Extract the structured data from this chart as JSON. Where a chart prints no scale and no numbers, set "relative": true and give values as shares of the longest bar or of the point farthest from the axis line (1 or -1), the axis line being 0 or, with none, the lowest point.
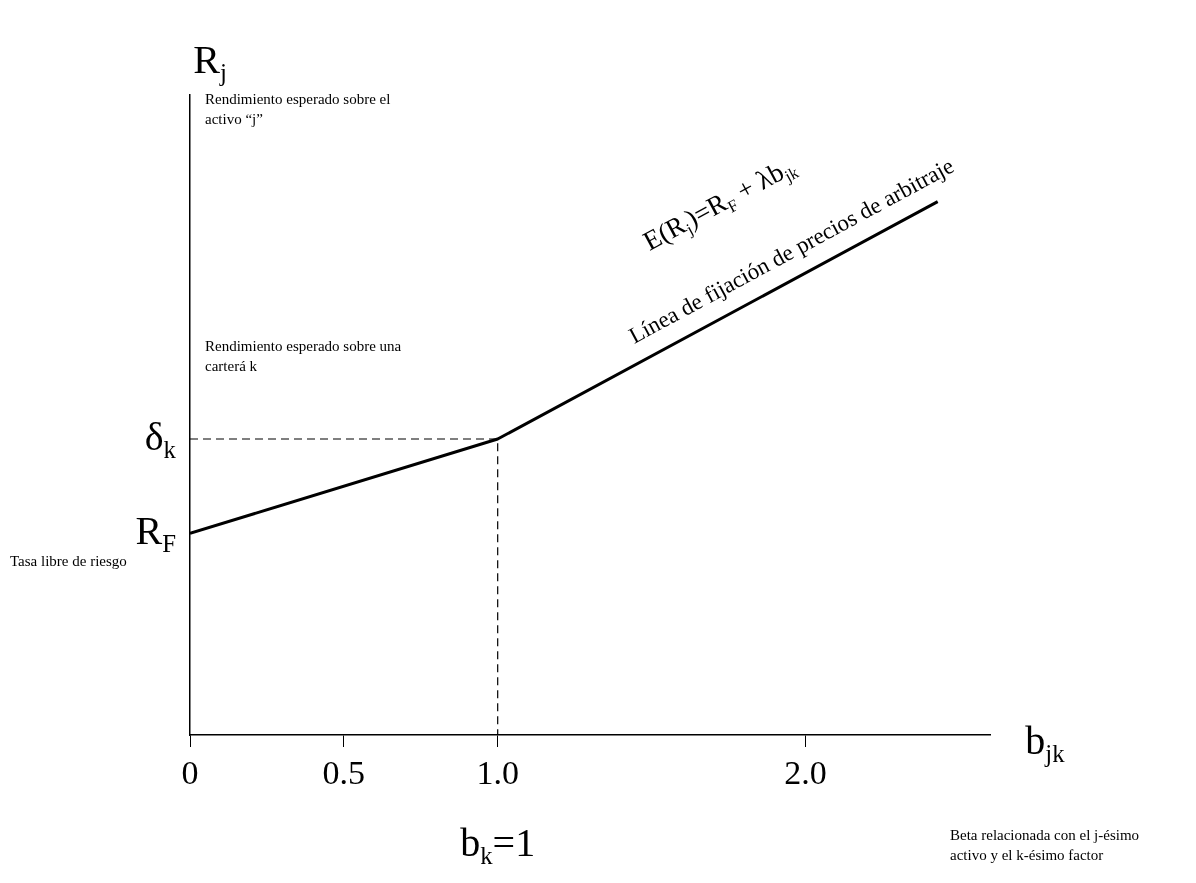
{
  "chart_data": {
    "type": "line",
    "xlabel": "b$_{jk}$",
    "ylabel": "R$_{j}$",
    "relative": true,
    "xlim": [
      0,
      2.6
    ],
    "xticks": [
      0,
      0.5,
      {
        "value": 1,
        "label": "1.0"
      },
      {
        "value": 2,
        "label": "2.0"
      }
    ],
    "grid": false,
    "marker": "none",
    "series": [
      {
        "color": "#000000",
        "x": [
          0,
          1,
          2.43
        ],
        "values": [
          0.378,
          0.555,
          1
        ]
      },
      {
        "color": "#000000",
        "line_style": "dashed",
        "x": [
          0,
          1,
          1
        ],
        "values": [
          0.555,
          0.555,
          0
        ]
      }
    ],
    "annotations": [
      "R$_{F}$",
      "δ$_{k}$",
      "b$_{k}$=1",
      "E(R$_{j}$)=R$_{F}$ + λb$_{jk}$",
      "Línea de fijación de precios de arbitraje",
      "Rendimiento esperado sobre el activo “j”",
      "Rendimiento esperado sobre una carterá k",
      "Tasa libre de riesgo",
      "Beta relacionada con el j-ésimo activo y el k-ésimo factor"
    ]
  }
}
